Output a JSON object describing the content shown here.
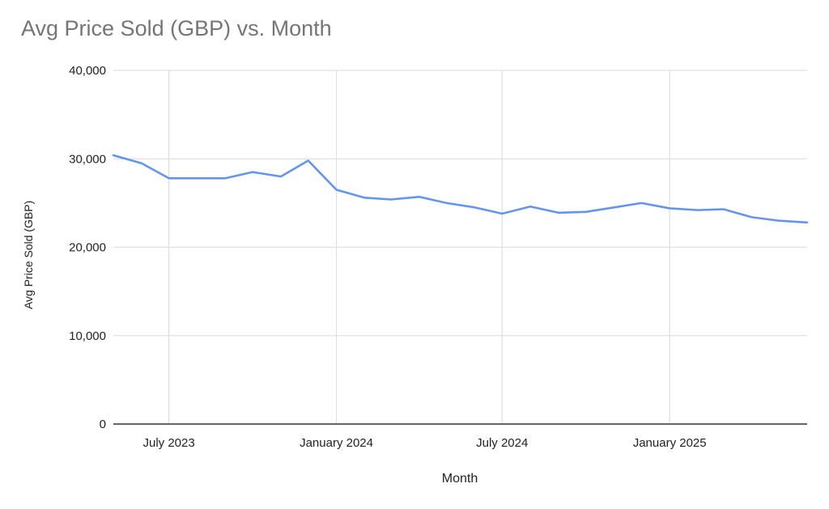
{
  "chart_data": {
    "type": "line",
    "title": "Avg Price Sold (GBP) vs. Month",
    "xlabel": "Month",
    "ylabel": "Avg Price Sold (GBP)",
    "ylim": [
      0,
      40000
    ],
    "y_ticks": [
      {
        "value": 0,
        "label": "0"
      },
      {
        "value": 10000,
        "label": "10,000"
      },
      {
        "value": 20000,
        "label": "20,000"
      },
      {
        "value": 30000,
        "label": "30,000"
      },
      {
        "value": 40000,
        "label": "40,000"
      }
    ],
    "x_ticks": [
      {
        "date": "2023-07-01",
        "label": "July 2023"
      },
      {
        "date": "2024-01-01",
        "label": "January 2024"
      },
      {
        "date": "2024-07-01",
        "label": "July 2024"
      },
      {
        "date": "2025-01-01",
        "label": "January 2025"
      }
    ],
    "xlim": [
      "2023-05-01",
      "2025-06-01"
    ],
    "grid": true,
    "legend": "none",
    "series": [
      {
        "color": "#6495ED",
        "points": [
          {
            "x": "2023-05-01",
            "y": 30400
          },
          {
            "x": "2023-06-01",
            "y": 29500
          },
          {
            "x": "2023-07-01",
            "y": 27800
          },
          {
            "x": "2023-08-01",
            "y": 27800
          },
          {
            "x": "2023-09-01",
            "y": 27800
          },
          {
            "x": "2023-10-01",
            "y": 28500
          },
          {
            "x": "2023-11-01",
            "y": 28000
          },
          {
            "x": "2023-12-01",
            "y": 29800
          },
          {
            "x": "2024-01-01",
            "y": 26500
          },
          {
            "x": "2024-02-01",
            "y": 25600
          },
          {
            "x": "2024-03-01",
            "y": 25400
          },
          {
            "x": "2024-04-01",
            "y": 25700
          },
          {
            "x": "2024-05-01",
            "y": 25000
          },
          {
            "x": "2024-06-01",
            "y": 24500
          },
          {
            "x": "2024-07-01",
            "y": 23800
          },
          {
            "x": "2024-08-01",
            "y": 24600
          },
          {
            "x": "2024-09-01",
            "y": 23900
          },
          {
            "x": "2024-10-01",
            "y": 24000
          },
          {
            "x": "2024-11-01",
            "y": 24500
          },
          {
            "x": "2024-12-01",
            "y": 25000
          },
          {
            "x": "2025-01-01",
            "y": 24400
          },
          {
            "x": "2025-02-01",
            "y": 24200
          },
          {
            "x": "2025-03-01",
            "y": 24300
          },
          {
            "x": "2025-04-01",
            "y": 23400
          },
          {
            "x": "2025-05-01",
            "y": 23000
          },
          {
            "x": "2025-06-01",
            "y": 22800
          }
        ]
      }
    ]
  }
}
